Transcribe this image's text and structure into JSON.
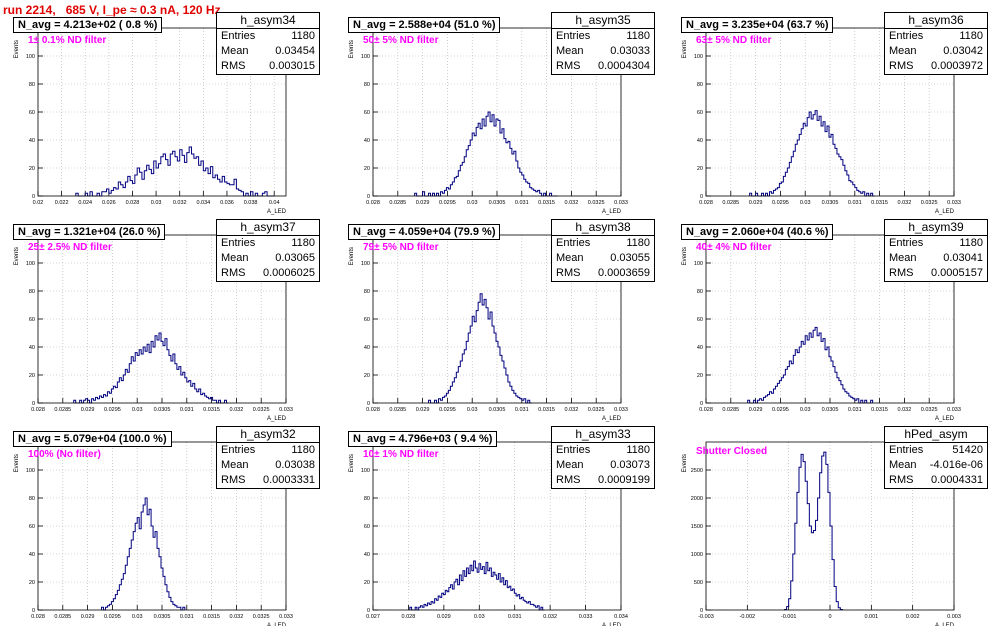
{
  "run_title": "run 2214,   685 V, I_pe ≈ 0.3 nA, 120 Hz",
  "axis_x_label": "A_LED",
  "axis_y_label": "Events",
  "stats_labels": {
    "entries": "Entries",
    "mean": "Mean",
    "rms": "RMS"
  },
  "colors": {
    "histogram": "#000080",
    "run_title": "#e00000",
    "filter_note": "#ff00ff",
    "grid": "#b0b0b0"
  },
  "chart_data": [
    {
      "type": "bar",
      "name": "h_asym34",
      "n_avg": "N_avg = 4.213e+02 ( 0.8 %)",
      "filter": "1± 0.1% ND filter",
      "entries": "1180",
      "mean": "0.03454",
      "rms": "0.003015",
      "xlim": [
        0.02,
        0.041
      ],
      "ylim": [
        0,
        120
      ],
      "x_ticks": [
        0.02,
        0.022,
        0.024,
        0.026,
        0.028,
        0.03,
        0.032,
        0.034,
        0.036,
        0.038,
        0.04
      ],
      "x_tick_labels": [
        "0.02",
        "0.022",
        "0.024",
        "0.026",
        "0.028",
        "0.03",
        "0.032",
        "0.034",
        "0.036",
        "0.038",
        "0.04"
      ],
      "y_ticks": [
        0,
        20,
        40,
        60,
        80,
        100,
        120
      ],
      "bin_lo": 0.0232,
      "bin_w": 0.0002,
      "values": [
        2,
        0,
        0,
        0,
        2,
        0,
        3,
        0,
        0,
        2,
        0,
        3,
        3,
        5,
        2,
        4,
        6,
        5,
        10,
        8,
        6,
        10,
        14,
        11,
        9,
        15,
        20,
        17,
        12,
        18,
        22,
        19,
        16,
        25,
        20,
        23,
        28,
        30,
        26,
        22,
        30,
        32,
        28,
        25,
        33,
        29,
        24,
        31,
        35,
        30,
        27,
        28,
        22,
        25,
        18,
        20,
        16,
        21,
        13,
        15,
        12,
        10,
        14,
        10,
        9,
        8,
        8,
        12,
        5,
        4,
        3,
        0,
        2,
        0,
        3,
        0,
        2,
        0,
        0,
        2,
        3,
        0,
        0,
        0
      ]
    },
    {
      "type": "bar",
      "name": "h_asym35",
      "n_avg": "N_avg = 2.588e+04 (51.0 %)",
      "filter": "50± 5% ND filter",
      "entries": "1180",
      "mean": "0.03033",
      "rms": "0.0004304",
      "xlim": [
        0.028,
        0.033
      ],
      "ylim": [
        0,
        120
      ],
      "x_ticks": [
        0.028,
        0.0285,
        0.029,
        0.0295,
        0.03,
        0.0305,
        0.031,
        0.0315,
        0.032,
        0.0325,
        0.033
      ],
      "x_tick_labels": [
        "0.028",
        "0.0285",
        "0.029",
        "0.0295",
        "0.03",
        "0.0305",
        "0.031",
        "0.0315",
        "0.032",
        "0.0325",
        "0.033"
      ],
      "y_ticks": [
        0,
        20,
        40,
        60,
        80,
        100,
        120
      ],
      "bin_lo": 0.02884,
      "bin_w": 4e-05,
      "values": [
        2,
        0,
        0,
        0,
        3,
        0,
        0,
        2,
        0,
        2,
        0,
        2,
        0,
        3,
        2,
        4,
        6,
        5,
        8,
        10,
        13,
        14,
        18,
        22,
        24,
        28,
        33,
        36,
        40,
        45,
        43,
        49,
        52,
        48,
        55,
        50,
        57,
        60,
        53,
        58,
        50,
        55,
        54,
        45,
        48,
        41,
        38,
        39,
        34,
        30,
        32,
        25,
        20,
        17,
        15,
        12,
        10,
        9,
        6,
        5,
        4,
        3,
        4,
        2,
        0,
        2,
        0,
        0,
        2,
        0,
        0,
        0
      ]
    },
    {
      "type": "bar",
      "name": "h_asym36",
      "n_avg": "N_avg = 3.235e+04 (63.7 %)",
      "filter": "63± 5% ND filter",
      "entries": "1180",
      "mean": "0.03042",
      "rms": "0.0003972",
      "xlim": [
        0.028,
        0.033
      ],
      "ylim": [
        0,
        120
      ],
      "x_ticks": [
        0.028,
        0.0285,
        0.029,
        0.0295,
        0.03,
        0.0305,
        0.031,
        0.0315,
        0.032,
        0.0325,
        0.033
      ],
      "x_tick_labels": [
        "0.028",
        "0.0285",
        "0.029",
        "0.0295",
        "0.03",
        "0.0305",
        "0.031",
        "0.0315",
        "0.032",
        "0.0325",
        "0.033"
      ],
      "y_ticks": [
        0,
        20,
        40,
        60,
        80,
        100,
        120
      ],
      "bin_lo": 0.02888,
      "bin_w": 4e-05,
      "values": [
        2,
        0,
        0,
        2,
        0,
        0,
        2,
        0,
        2,
        0,
        3,
        2,
        4,
        5,
        6,
        9,
        10,
        14,
        17,
        20,
        24,
        28,
        32,
        37,
        40,
        44,
        48,
        52,
        50,
        56,
        60,
        55,
        58,
        61,
        54,
        57,
        50,
        53,
        46,
        50,
        42,
        44,
        37,
        34,
        30,
        28,
        26,
        22,
        18,
        15,
        11,
        10,
        8,
        6,
        4,
        3,
        2,
        3,
        0,
        2,
        0,
        2,
        0
      ]
    },
    {
      "type": "bar",
      "name": "h_asym37",
      "n_avg": "N_avg = 1.321e+04 (26.0 %)",
      "filter": "25± 2.5% ND filter",
      "entries": "1180",
      "mean": "0.03065",
      "rms": "0.0006025",
      "xlim": [
        0.028,
        0.033
      ],
      "ylim": [
        0,
        120
      ],
      "x_ticks": [
        0.028,
        0.0285,
        0.029,
        0.0295,
        0.03,
        0.0305,
        0.031,
        0.0315,
        0.032,
        0.0325,
        0.033
      ],
      "x_tick_labels": [
        "0.028",
        "0.0285",
        "0.029",
        "0.0295",
        "0.03",
        "0.0305",
        "0.031",
        "0.0315",
        "0.032",
        "0.0325",
        "0.033"
      ],
      "y_ticks": [
        0,
        20,
        40,
        60,
        80,
        100,
        120
      ],
      "bin_lo": 0.02872,
      "bin_w": 4e-05,
      "values": [
        2,
        0,
        0,
        2,
        0,
        2,
        3,
        2,
        0,
        3,
        2,
        4,
        3,
        5,
        4,
        6,
        5,
        8,
        7,
        10,
        12,
        11,
        15,
        18,
        16,
        20,
        24,
        22,
        28,
        33,
        30,
        36,
        34,
        38,
        35,
        40,
        37,
        42,
        36,
        44,
        40,
        48,
        45,
        50,
        44,
        41,
        46,
        38,
        34,
        30,
        35,
        28,
        24,
        26,
        20,
        22,
        18,
        15,
        16,
        12,
        14,
        10,
        8,
        10,
        6,
        7,
        5,
        4,
        3,
        4,
        2,
        2,
        0,
        2,
        0,
        0,
        2,
        0
      ]
    },
    {
      "type": "bar",
      "name": "h_asym38",
      "n_avg": "N_avg = 4.059e+04 (79.9 %)",
      "filter": "79± 5% ND filter",
      "entries": "1180",
      "mean": "0.03055",
      "rms": "0.0003659",
      "xlim": [
        0.028,
        0.033
      ],
      "ylim": [
        0,
        120
      ],
      "x_ticks": [
        0.028,
        0.0285,
        0.029,
        0.0295,
        0.03,
        0.0305,
        0.031,
        0.0315,
        0.032,
        0.0325,
        0.033
      ],
      "x_tick_labels": [
        "0.028",
        "0.0285",
        "0.029",
        "0.0295",
        "0.03",
        "0.0305",
        "0.031",
        "0.0315",
        "0.032",
        "0.0325",
        "0.033"
      ],
      "y_ticks": [
        0,
        20,
        40,
        60,
        80,
        100,
        120
      ],
      "bin_lo": 0.02912,
      "bin_w": 4e-05,
      "values": [
        2,
        0,
        0,
        2,
        0,
        3,
        2,
        4,
        5,
        7,
        9,
        12,
        15,
        18,
        22,
        26,
        30,
        35,
        38,
        44,
        50,
        55,
        62,
        58,
        66,
        72,
        78,
        70,
        74,
        68,
        60,
        65,
        55,
        50,
        44,
        40,
        34,
        30,
        25,
        20,
        15,
        12,
        9,
        7,
        5,
        4,
        3,
        2,
        3,
        0,
        2,
        0
      ]
    },
    {
      "type": "bar",
      "name": "h_asym39",
      "n_avg": "N_avg = 2.060e+04 (40.6 %)",
      "filter": "40± 4% ND filter",
      "entries": "1180",
      "mean": "0.03041",
      "rms": "0.0005157",
      "xlim": [
        0.028,
        0.033
      ],
      "ylim": [
        0,
        120
      ],
      "x_ticks": [
        0.028,
        0.0285,
        0.029,
        0.0295,
        0.03,
        0.0305,
        0.031,
        0.0315,
        0.032,
        0.0325,
        0.033
      ],
      "x_tick_labels": [
        "0.028",
        "0.0285",
        "0.029",
        "0.0295",
        "0.03",
        "0.0305",
        "0.031",
        "0.0315",
        "0.032",
        "0.0325",
        "0.033"
      ],
      "y_ticks": [
        0,
        20,
        40,
        60,
        80,
        100,
        120
      ],
      "bin_lo": 0.02884,
      "bin_w": 4e-05,
      "values": [
        2,
        0,
        0,
        2,
        0,
        2,
        3,
        2,
        4,
        5,
        6,
        8,
        7,
        10,
        12,
        14,
        16,
        18,
        20,
        24,
        26,
        30,
        28,
        34,
        38,
        36,
        40,
        44,
        42,
        48,
        45,
        50,
        47,
        52,
        54,
        48,
        50,
        44,
        46,
        38,
        40,
        33,
        30,
        26,
        22,
        18,
        16,
        13,
        10,
        8,
        7,
        5,
        4,
        3,
        2,
        3,
        0,
        2,
        0,
        2,
        0,
        0,
        2
      ]
    },
    {
      "type": "bar",
      "name": "h_asym32",
      "n_avg": "N_avg = 5.079e+04 (100.0 %)",
      "filter": "100% (No filter)",
      "entries": "1180",
      "mean": "0.03038",
      "rms": "0.0003331",
      "xlim": [
        0.028,
        0.033
      ],
      "ylim": [
        0,
        120
      ],
      "x_ticks": [
        0.028,
        0.0285,
        0.029,
        0.0295,
        0.03,
        0.0305,
        0.031,
        0.0315,
        0.032,
        0.0325,
        0.033
      ],
      "x_tick_labels": [
        "0.028",
        "0.0285",
        "0.029",
        "0.0295",
        "0.03",
        "0.0305",
        "0.031",
        "0.0315",
        "0.032",
        "0.0325",
        "0.033"
      ],
      "y_ticks": [
        0,
        20,
        40,
        60,
        80,
        100,
        120
      ],
      "bin_lo": 0.02928,
      "bin_w": 4e-05,
      "values": [
        2,
        0,
        2,
        3,
        4,
        6,
        8,
        11,
        14,
        18,
        22,
        26,
        32,
        38,
        44,
        50,
        56,
        62,
        66,
        58,
        70,
        75,
        80,
        68,
        72,
        60,
        52,
        56,
        44,
        38,
        30,
        24,
        18,
        13,
        9,
        6,
        4,
        3,
        2,
        2,
        0,
        2
      ]
    },
    {
      "type": "bar",
      "name": "h_asym33",
      "n_avg": "N_avg = 4.796e+03 ( 9.4 %)",
      "filter": "10± 1% ND filter",
      "entries": "1180",
      "mean": "0.03073",
      "rms": "0.0009199",
      "xlim": [
        0.027,
        0.034
      ],
      "ylim": [
        0,
        120
      ],
      "x_ticks": [
        0.027,
        0.028,
        0.029,
        0.03,
        0.031,
        0.032,
        0.033,
        0.034
      ],
      "x_tick_labels": [
        "0.027",
        "0.028",
        "0.029",
        "0.03",
        "0.031",
        "0.032",
        "0.033",
        "0.034"
      ],
      "y_ticks": [
        0,
        20,
        40,
        60,
        80,
        100,
        120
      ],
      "bin_lo": 0.02804,
      "bin_w": 5e-05,
      "values": [
        2,
        0,
        0,
        2,
        0,
        2,
        3,
        2,
        4,
        3,
        5,
        4,
        6,
        5,
        8,
        7,
        10,
        9,
        12,
        11,
        14,
        13,
        16,
        18,
        15,
        20,
        22,
        18,
        25,
        21,
        28,
        24,
        30,
        26,
        32,
        28,
        35,
        30,
        27,
        33,
        29,
        31,
        26,
        34,
        28,
        30,
        24,
        27,
        25,
        22,
        26,
        20,
        23,
        18,
        21,
        16,
        17,
        14,
        15,
        12,
        10,
        11,
        8,
        9,
        7,
        6,
        5,
        6,
        4,
        4,
        3,
        2,
        3,
        0,
        2,
        0
      ]
    },
    {
      "type": "bar",
      "name": "hPed_asym",
      "n_avg": "",
      "filter": "Shutter Closed",
      "entries": "51420",
      "mean": "-4.016e-06",
      "rms": "0.0004331",
      "xlim": [
        -0.003,
        0.003
      ],
      "ylim": [
        0,
        3000
      ],
      "x_ticks": [
        -0.003,
        -0.002,
        -0.001,
        0,
        0.001,
        0.002,
        0.003
      ],
      "x_tick_labels": [
        "-0.003",
        "-0.002",
        "-0.001",
        "0",
        "0.001",
        "0.002",
        "0.003"
      ],
      "y_ticks": [
        0,
        500,
        1000,
        1500,
        2000,
        2500
      ],
      "bin_lo": -0.0011,
      "bin_w": 5e-05,
      "values": [
        10,
        60,
        200,
        520,
        1000,
        1550,
        2100,
        2550,
        2780,
        2650,
        2300,
        1900,
        1500,
        1380,
        1420,
        1600,
        2000,
        2450,
        2750,
        2820,
        2600,
        2100,
        1500,
        900,
        420,
        150,
        40,
        10
      ]
    }
  ]
}
